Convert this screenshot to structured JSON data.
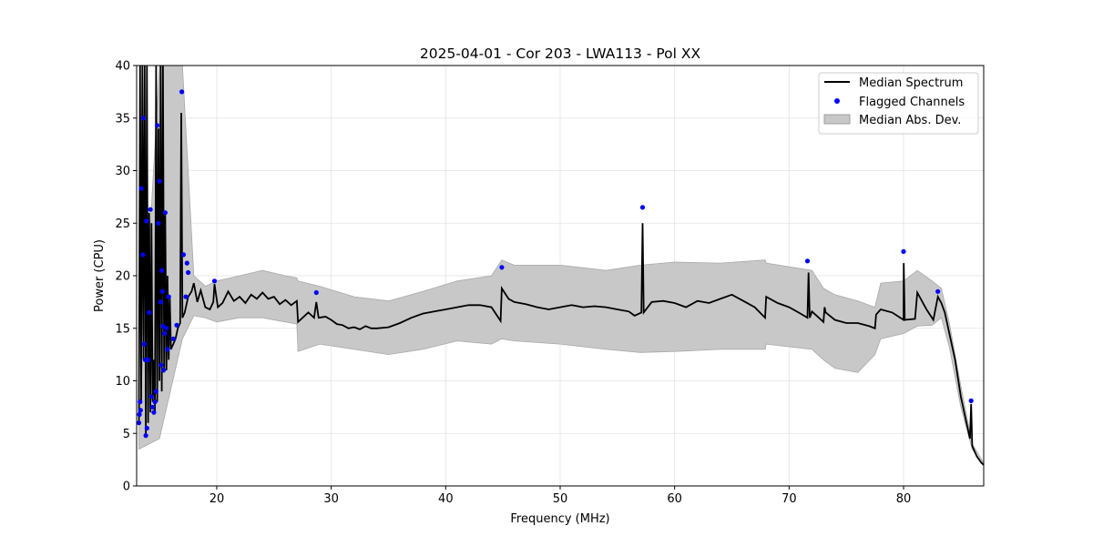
{
  "chart_data": {
    "type": "line",
    "title": "2025-04-01 - Cor 203 - LWA113 - Pol XX",
    "xlabel": "Frequency (MHz)",
    "ylabel": "Power (CPU)",
    "xlim": [
      13,
      87
    ],
    "ylim": [
      0,
      40
    ],
    "xticks": [
      20,
      30,
      40,
      50,
      60,
      70,
      80
    ],
    "yticks": [
      0,
      5,
      10,
      15,
      20,
      25,
      30,
      35,
      40
    ],
    "grid": true,
    "legend_position": "top-right",
    "legend": [
      "Median Spectrum",
      "Flagged Channels",
      "Median Abs. Dev."
    ],
    "series": [
      {
        "name": "Median Spectrum",
        "kind": "line",
        "color": "#000000",
        "points": [
          [
            13.2,
            6.0
          ],
          [
            13.3,
            40
          ],
          [
            13.4,
            8.0
          ],
          [
            13.5,
            40
          ],
          [
            13.6,
            12.0
          ],
          [
            13.7,
            40
          ],
          [
            13.8,
            5.0
          ],
          [
            13.9,
            40
          ],
          [
            14.0,
            6.0
          ],
          [
            14.1,
            26.0
          ],
          [
            14.2,
            7.0
          ],
          [
            14.3,
            25.0
          ],
          [
            14.4,
            8.0
          ],
          [
            14.5,
            12.0
          ],
          [
            14.6,
            7.0
          ],
          [
            14.7,
            40
          ],
          [
            14.8,
            8.0
          ],
          [
            14.9,
            34.0
          ],
          [
            15.0,
            10.0
          ],
          [
            15.1,
            40
          ],
          [
            15.2,
            9.0
          ],
          [
            15.3,
            40
          ],
          [
            15.4,
            11.0
          ],
          [
            15.5,
            26.0
          ],
          [
            15.6,
            11.0
          ],
          [
            15.7,
            20.0
          ],
          [
            15.8,
            12.0
          ],
          [
            15.9,
            18.0
          ],
          [
            16.0,
            13.0
          ],
          [
            16.2,
            13.5
          ],
          [
            16.4,
            14.0
          ],
          [
            16.6,
            15.0
          ],
          [
            16.8,
            15.5
          ],
          [
            16.9,
            35.5
          ],
          [
            17.0,
            16.0
          ],
          [
            17.2,
            16.5
          ],
          [
            17.5,
            18.0
          ],
          [
            17.8,
            18.5
          ],
          [
            18.0,
            19.3
          ],
          [
            18.3,
            17.5
          ],
          [
            18.6,
            18.6
          ],
          [
            19.0,
            17.0
          ],
          [
            19.4,
            16.8
          ],
          [
            19.7,
            17.5
          ],
          [
            19.8,
            19.2
          ],
          [
            20.1,
            17.0
          ],
          [
            20.5,
            17.4
          ],
          [
            21.0,
            18.5
          ],
          [
            21.5,
            17.6
          ],
          [
            22.0,
            18.0
          ],
          [
            22.5,
            17.4
          ],
          [
            23.0,
            18.2
          ],
          [
            23.5,
            17.8
          ],
          [
            24.0,
            18.4
          ],
          [
            24.5,
            17.8
          ],
          [
            25.0,
            18.0
          ],
          [
            25.5,
            17.3
          ],
          [
            26.0,
            17.7
          ],
          [
            26.5,
            17.2
          ],
          [
            27.0,
            17.6
          ],
          [
            27.1,
            15.6
          ],
          [
            27.5,
            16.0
          ],
          [
            28.0,
            16.5
          ],
          [
            28.5,
            16.0
          ],
          [
            28.7,
            17.5
          ],
          [
            28.9,
            16.0
          ],
          [
            29.5,
            16.1
          ],
          [
            30.0,
            15.8
          ],
          [
            30.5,
            15.4
          ],
          [
            31.0,
            15.3
          ],
          [
            31.5,
            15.0
          ],
          [
            32.0,
            15.1
          ],
          [
            32.5,
            14.9
          ],
          [
            33.0,
            15.2
          ],
          [
            33.5,
            15.0
          ],
          [
            34.0,
            15.0
          ],
          [
            35.0,
            15.1
          ],
          [
            36.0,
            15.5
          ],
          [
            37.0,
            16.0
          ],
          [
            38.0,
            16.4
          ],
          [
            39.0,
            16.6
          ],
          [
            40.0,
            16.8
          ],
          [
            41.0,
            17.0
          ],
          [
            42.0,
            17.2
          ],
          [
            43.0,
            17.2
          ],
          [
            44.0,
            17.0
          ],
          [
            44.8,
            15.7
          ],
          [
            44.9,
            18.8
          ],
          [
            45.5,
            17.8
          ],
          [
            46.0,
            17.5
          ],
          [
            47.0,
            17.3
          ],
          [
            48.0,
            17.0
          ],
          [
            49.0,
            16.8
          ],
          [
            50.0,
            17.0
          ],
          [
            51.0,
            17.2
          ],
          [
            52.0,
            17.0
          ],
          [
            53.0,
            17.1
          ],
          [
            54.0,
            17.0
          ],
          [
            55.0,
            16.8
          ],
          [
            56.0,
            16.6
          ],
          [
            56.5,
            16.2
          ],
          [
            57.1,
            16.5
          ],
          [
            57.2,
            25.0
          ],
          [
            57.3,
            16.5
          ],
          [
            58.0,
            17.5
          ],
          [
            59.0,
            17.6
          ],
          [
            60.0,
            17.4
          ],
          [
            61.0,
            17.0
          ],
          [
            62.0,
            17.6
          ],
          [
            63.0,
            17.4
          ],
          [
            64.0,
            17.8
          ],
          [
            65.0,
            18.2
          ],
          [
            66.0,
            17.6
          ],
          [
            67.0,
            17.0
          ],
          [
            67.9,
            16.0
          ],
          [
            68.0,
            18.0
          ],
          [
            69.0,
            17.4
          ],
          [
            70.0,
            17.0
          ],
          [
            71.0,
            16.4
          ],
          [
            71.6,
            16.0
          ],
          [
            71.7,
            20.3
          ],
          [
            71.8,
            16.0
          ],
          [
            72.0,
            16.6
          ],
          [
            73.0,
            15.6
          ],
          [
            73.1,
            17.0
          ],
          [
            73.2,
            16.5
          ],
          [
            74.0,
            15.8
          ],
          [
            75.0,
            15.5
          ],
          [
            76.0,
            15.5
          ],
          [
            77.0,
            15.2
          ],
          [
            77.5,
            15.0
          ],
          [
            77.6,
            16.3
          ],
          [
            78.0,
            16.8
          ],
          [
            79.0,
            16.5
          ],
          [
            80.0,
            15.8
          ],
          [
            80.01,
            21.2
          ],
          [
            80.1,
            15.8
          ],
          [
            81.0,
            15.9
          ],
          [
            81.2,
            18.4
          ],
          [
            82.0,
            16.8
          ],
          [
            82.6,
            15.8
          ],
          [
            83.0,
            18.0
          ],
          [
            83.3,
            17.4
          ],
          [
            83.6,
            16.5
          ],
          [
            84.0,
            14.5
          ],
          [
            84.5,
            12.0
          ],
          [
            85.0,
            8.5
          ],
          [
            85.5,
            6.0
          ],
          [
            85.8,
            4.5
          ],
          [
            85.9,
            7.8
          ],
          [
            86.0,
            3.8
          ],
          [
            86.4,
            2.8
          ],
          [
            86.8,
            2.2
          ],
          [
            87.0,
            2.0
          ]
        ]
      },
      {
        "name": "Flagged Channels",
        "kind": "scatter",
        "color": "#0000ff",
        "points": [
          [
            13.2,
            6.0
          ],
          [
            13.25,
            6.8
          ],
          [
            13.3,
            8.0
          ],
          [
            13.35,
            7.2
          ],
          [
            13.4,
            28.3
          ],
          [
            13.55,
            22.0
          ],
          [
            13.6,
            35.0
          ],
          [
            13.65,
            13.5
          ],
          [
            13.75,
            12.0
          ],
          [
            13.8,
            4.8
          ],
          [
            13.85,
            25.2
          ],
          [
            13.9,
            5.5
          ],
          [
            14.0,
            12.0
          ],
          [
            14.1,
            16.5
          ],
          [
            14.2,
            26.3
          ],
          [
            14.3,
            8.5
          ],
          [
            14.4,
            7.5
          ],
          [
            14.5,
            7.0
          ],
          [
            14.6,
            8.0
          ],
          [
            14.7,
            9.0
          ],
          [
            14.8,
            34.3
          ],
          [
            14.9,
            25.0
          ],
          [
            15.0,
            29.0
          ],
          [
            15.1,
            17.5
          ],
          [
            15.15,
            11.5
          ],
          [
            15.2,
            20.5
          ],
          [
            15.25,
            18.5
          ],
          [
            15.3,
            15.2
          ],
          [
            15.35,
            11.0
          ],
          [
            15.45,
            14.5
          ],
          [
            15.5,
            26.0
          ],
          [
            15.6,
            15.0
          ],
          [
            15.7,
            13.0
          ],
          [
            15.8,
            18.0
          ],
          [
            16.2,
            14.0
          ],
          [
            16.5,
            15.3
          ],
          [
            16.95,
            37.5
          ],
          [
            17.1,
            22.0
          ],
          [
            17.3,
            18.0
          ],
          [
            17.4,
            21.2
          ],
          [
            17.5,
            20.3
          ],
          [
            19.8,
            19.5
          ],
          [
            28.7,
            18.4
          ],
          [
            44.9,
            20.8
          ],
          [
            57.2,
            26.5
          ],
          [
            71.6,
            21.4
          ],
          [
            80.0,
            22.3
          ],
          [
            83.0,
            18.5
          ],
          [
            85.9,
            8.1
          ]
        ]
      },
      {
        "name": "Median Abs. Dev.",
        "kind": "band",
        "color": "#c8c8c8",
        "x": [
          13.2,
          15.0,
          17.0,
          18.0,
          19.0,
          20.0,
          22.0,
          24.0,
          26.0,
          27.0,
          27.1,
          29.0,
          32.0,
          35.0,
          38.0,
          41.0,
          44.0,
          44.9,
          46.0,
          50.0,
          54.0,
          57.0,
          60.0,
          64.0,
          67.9,
          68.0,
          72.0,
          73.0,
          74.0,
          76.0,
          77.5,
          78.0,
          80.0,
          81.2,
          82.5,
          83.3,
          84.0,
          85.0,
          86.0,
          87.0
        ],
        "upper": [
          5.5,
          40,
          40,
          20.0,
          19.0,
          19.5,
          20.0,
          20.5,
          20.0,
          19.8,
          19.5,
          19.0,
          18.0,
          17.6,
          18.5,
          19.5,
          20.0,
          21.5,
          21.0,
          21.0,
          20.5,
          21.0,
          21.3,
          21.2,
          21.5,
          21.2,
          20.5,
          18.8,
          18.2,
          17.6,
          17.0,
          19.3,
          19.5,
          20.5,
          19.5,
          18.8,
          15.5,
          9.5,
          4.0,
          2.2
        ],
        "lower": [
          3.5,
          4.5,
          14.0,
          16.2,
          16.0,
          15.6,
          16.0,
          16.0,
          15.6,
          15.4,
          12.8,
          13.5,
          13.0,
          12.5,
          13.0,
          13.8,
          13.5,
          14.0,
          13.8,
          13.5,
          13.0,
          12.7,
          12.8,
          13.0,
          13.0,
          13.5,
          13.0,
          12.0,
          11.2,
          10.8,
          12.5,
          14.0,
          14.5,
          15.2,
          15.3,
          16.0,
          13.2,
          7.5,
          3.5,
          1.9
        ]
      }
    ]
  }
}
